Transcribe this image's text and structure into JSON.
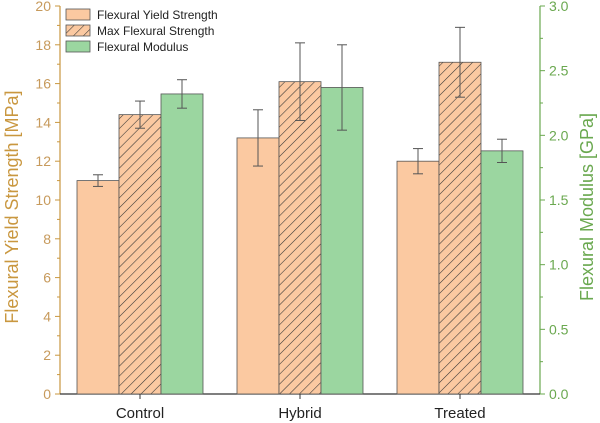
{
  "chart_data": {
    "type": "bar",
    "categories": [
      "Control",
      "Hybrid",
      "Treated"
    ],
    "ylabel": "Flexural Yield Strength [MPa]",
    "ylabel_right": "Flexural Modulus [GPa]",
    "ylim": [
      0,
      20
    ],
    "ylim_right": [
      0,
      3.0
    ],
    "yticks": [
      "0",
      "2",
      "4",
      "6",
      "8",
      "10",
      "12",
      "14",
      "16",
      "18",
      "20"
    ],
    "yticks_right": [
      "0.0",
      "0.5",
      "1.0",
      "1.5",
      "2.0",
      "2.5",
      "3.0"
    ],
    "grid": false,
    "legend_position": "top-left",
    "series": [
      {
        "name": "Flexural Yield Strength",
        "axis": "left",
        "color": "#fbc9a1",
        "pattern": "solid",
        "values": [
          11.0,
          13.2,
          12.0
        ],
        "errors": [
          0.3,
          1.45,
          0.65
        ]
      },
      {
        "name": "Max Flexural Strength",
        "axis": "left",
        "color": "#fbc9a1",
        "pattern": "hatched",
        "values": [
          14.4,
          16.1,
          17.1
        ],
        "errors": [
          0.7,
          2.0,
          1.8
        ]
      },
      {
        "name": "Flexural Modulus",
        "axis": "right",
        "color": "#9bd6a0",
        "pattern": "solid",
        "values": [
          2.32,
          2.37,
          1.88
        ],
        "errors": [
          0.11,
          0.33,
          0.09
        ]
      }
    ]
  }
}
